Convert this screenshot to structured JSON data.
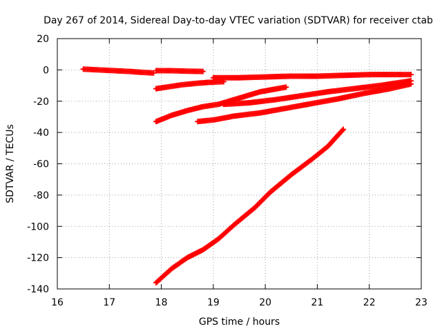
{
  "chart_data": {
    "type": "scatter",
    "title": "Day 267 of 2014, Sidereal Day-to-day VTEC variation (SDTVAR) for receiver ctab",
    "xlabel": "GPS time / hours",
    "ylabel": "SDTVAR / TECUs",
    "xlim": [
      16,
      23
    ],
    "ylim": [
      -140,
      20
    ],
    "xticks": [
      "16",
      "17",
      "18",
      "19",
      "20",
      "21",
      "22",
      "23"
    ],
    "yticks": [
      "20",
      "0",
      "-20",
      "-40",
      "-60",
      "-80",
      "-100",
      "-120",
      "-140"
    ],
    "grid": true,
    "marker": "plus",
    "color": "#ff0000",
    "series": [
      {
        "x": [
          16.5,
          16.8,
          17.1,
          17.4,
          17.6,
          17.85
        ],
        "y": [
          0.5,
          0,
          -0.5,
          -1,
          -1.5,
          -2
        ]
      },
      {
        "x": [
          17.9,
          18.2,
          18.5,
          18.8
        ],
        "y": [
          -0.5,
          -0.5,
          -0.8,
          -1
        ]
      },
      {
        "x": [
          17.9,
          18.1,
          18.4,
          18.7,
          18.9,
          19.2
        ],
        "y": [
          -12,
          -11,
          -9.5,
          -8.5,
          -8,
          -7.5
        ]
      },
      {
        "x": [
          19.0,
          19.5,
          20.0,
          20.5,
          21.0,
          21.5,
          22.0,
          22.5,
          22.8
        ],
        "y": [
          -5,
          -5,
          -4.5,
          -4,
          -4,
          -3.5,
          -3,
          -3,
          -3
        ]
      },
      {
        "x": [
          17.9,
          18.2,
          18.5,
          18.8,
          19.1,
          19.5,
          19.9,
          20.4
        ],
        "y": [
          -33,
          -29,
          -26,
          -23.5,
          -22,
          -18,
          -14,
          -11
        ]
      },
      {
        "x": [
          19.2,
          19.7,
          20.2,
          20.7,
          21.2,
          21.7,
          22.2,
          22.8
        ],
        "y": [
          -22,
          -21,
          -19,
          -16.5,
          -14,
          -12,
          -10,
          -7
        ]
      },
      {
        "x": [
          18.7,
          19.0,
          19.4,
          19.9,
          20.4,
          20.9,
          21.4,
          21.9,
          22.4,
          22.8
        ],
        "y": [
          -33,
          -32,
          -29.5,
          -27.5,
          -24.5,
          -21.5,
          -18.5,
          -15,
          -12,
          -9
        ]
      },
      {
        "x": [
          17.9,
          18.2,
          18.5,
          18.8,
          19.1,
          19.4,
          19.8,
          20.1,
          20.5,
          20.9,
          21.2,
          21.5
        ],
        "y": [
          -136,
          -127,
          -120,
          -115,
          -108,
          -99,
          -88,
          -78,
          -67,
          -57,
          -49,
          -38
        ]
      }
    ]
  }
}
